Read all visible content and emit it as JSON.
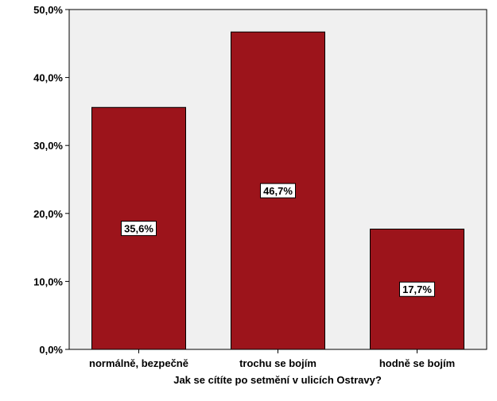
{
  "chart_data": {
    "type": "bar",
    "categories": [
      "normálně, bezpečně",
      "trochu se bojím",
      "hodně se bojím"
    ],
    "values": [
      35.6,
      46.7,
      17.7
    ],
    "data_labels": [
      "35,6%",
      "46,7%",
      "17,7%"
    ],
    "xlabel": "Jak se cítíte po setmění v ulicích Ostravy?",
    "ylabel": "",
    "ylim": [
      0,
      50
    ],
    "yticks": [
      0,
      10,
      20,
      30,
      40,
      50
    ],
    "ytick_labels": [
      "0,0%",
      "10,0%",
      "20,0%",
      "30,0%",
      "40,0%",
      "50,0%"
    ],
    "grid": false,
    "legend": "none",
    "colors": {
      "bar": "#9c141b",
      "plot_background": "#f0f0f0",
      "page_background": "#ffffff"
    }
  }
}
